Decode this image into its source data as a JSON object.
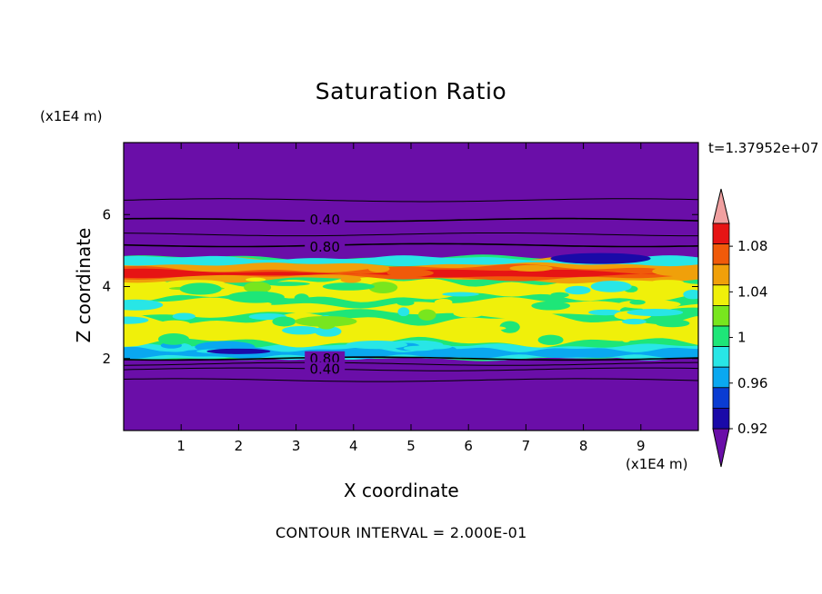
{
  "chart_data": {
    "type": "heatmap",
    "title": "Saturation Ratio",
    "xlabel": "X coordinate",
    "ylabel": "Z coordinate",
    "x_scale_label": "(x1E4 m)",
    "y_scale_label": "(x1E4 m)",
    "time_label": "t=1.37952e+07",
    "footer": "CONTOUR INTERVAL = 2.000E-01",
    "xlim": [
      0,
      10
    ],
    "ylim": [
      0,
      8
    ],
    "x_ticks": [
      "1",
      "2",
      "3",
      "4",
      "5",
      "6",
      "7",
      "8",
      "9"
    ],
    "y_ticks": [
      "2",
      "4",
      "6"
    ],
    "contour_labels": [
      {
        "text": "0.40",
        "x": 3.5,
        "y": 5.85
      },
      {
        "text": "0.80",
        "x": 3.5,
        "y": 5.1
      },
      {
        "text": "0.80",
        "x": 3.5,
        "y": 2.0
      },
      {
        "text": "0.40",
        "x": 3.5,
        "y": 1.7
      }
    ],
    "colorbar": {
      "tick_labels": [
        "1.08",
        "1.04",
        "1",
        "0.96",
        "0.92"
      ],
      "levels": [
        0.92,
        0.94,
        0.96,
        0.98,
        1.0,
        1.02,
        1.04,
        1.06,
        1.08,
        1.1
      ],
      "colors": [
        "#6a0ea8",
        "#1a0aa8",
        "#0a3cd2",
        "#0aa8f0",
        "#28e6e6",
        "#1ee678",
        "#78e61e",
        "#f0f00a",
        "#f0a00a",
        "#f05a0a",
        "#e61414",
        "#f0a0a0"
      ]
    },
    "bands": [
      {
        "z": [
          0,
          2.0
        ],
        "value": "below 0.92"
      },
      {
        "z": [
          2.0,
          2.4
        ],
        "value": "0.94-0.98"
      },
      {
        "z": [
          2.4,
          3.8
        ],
        "value": "0.98-1.04"
      },
      {
        "z": [
          3.8,
          4.8
        ],
        "value": "1.02-1.08"
      },
      {
        "z": [
          4.8,
          8.0
        ],
        "value": "below 0.92"
      }
    ]
  }
}
